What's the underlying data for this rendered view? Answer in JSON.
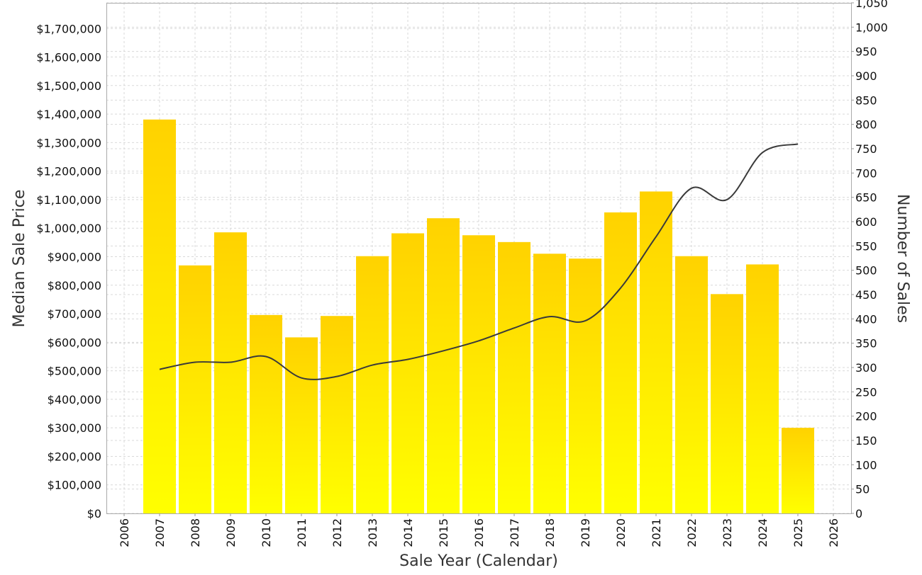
{
  "chart_data": {
    "type": "bar",
    "title": "",
    "xlabel": "Sale Year (Calendar)",
    "ylabel": "Median Sale Price",
    "y2label": "Number of Sales",
    "x_ticks": [
      "2006",
      "2007",
      "2008",
      "2009",
      "2010",
      "2011",
      "2012",
      "2013",
      "2014",
      "2015",
      "2016",
      "2017",
      "2018",
      "2019",
      "2020",
      "2021",
      "2022",
      "2023",
      "2024",
      "2025",
      "2026"
    ],
    "xlim": [
      2006,
      2026
    ],
    "ylim": [
      0,
      1790000
    ],
    "y2lim": [
      0,
      1050
    ],
    "y_ticks": [
      "$0",
      "$100,000",
      "$200,000",
      "$300,000",
      "$400,000",
      "$500,000",
      "$600,000",
      "$700,000",
      "$800,000",
      "$900,000",
      "$1,000,000",
      "$1,100,000",
      "$1,200,000",
      "$1,300,000",
      "$1,400,000",
      "$1,500,000",
      "$1,600,000",
      "$1,700,000"
    ],
    "y2_ticks": [
      "0",
      "50",
      "100",
      "150",
      "200",
      "250",
      "300",
      "350",
      "400",
      "450",
      "500",
      "550",
      "600",
      "650",
      "700",
      "750",
      "800",
      "850",
      "900",
      "950",
      "1,000",
      "1,050"
    ],
    "grid": true,
    "bar_color_top": "#ffd200",
    "bar_color_bottom": "#ffff00",
    "line_color": "#3a3a3a",
    "series": [
      {
        "kind": "bar",
        "axis": "right",
        "x": [
          2007,
          2008,
          2009,
          2010,
          2011,
          2012,
          2013,
          2014,
          2015,
          2016,
          2017,
          2018,
          2019,
          2020,
          2021,
          2022,
          2023,
          2024,
          2025
        ],
        "values": [
          810,
          510,
          578,
          408,
          362,
          406,
          529,
          576,
          607,
          572,
          558,
          534,
          524,
          619,
          662,
          529,
          451,
          512,
          176
        ]
      },
      {
        "kind": "line",
        "axis": "left",
        "x": [
          2007,
          2008,
          2009,
          2010,
          2011,
          2012,
          2013,
          2014,
          2015,
          2016,
          2017,
          2018,
          2019,
          2020,
          2021,
          2022,
          2023,
          2024,
          2025
        ],
        "values": [
          505000,
          530000,
          530000,
          550000,
          475000,
          480000,
          520000,
          540000,
          570000,
          605000,
          650000,
          690000,
          675000,
          790000,
          970000,
          1140000,
          1100000,
          1265000,
          1295000
        ]
      }
    ]
  }
}
